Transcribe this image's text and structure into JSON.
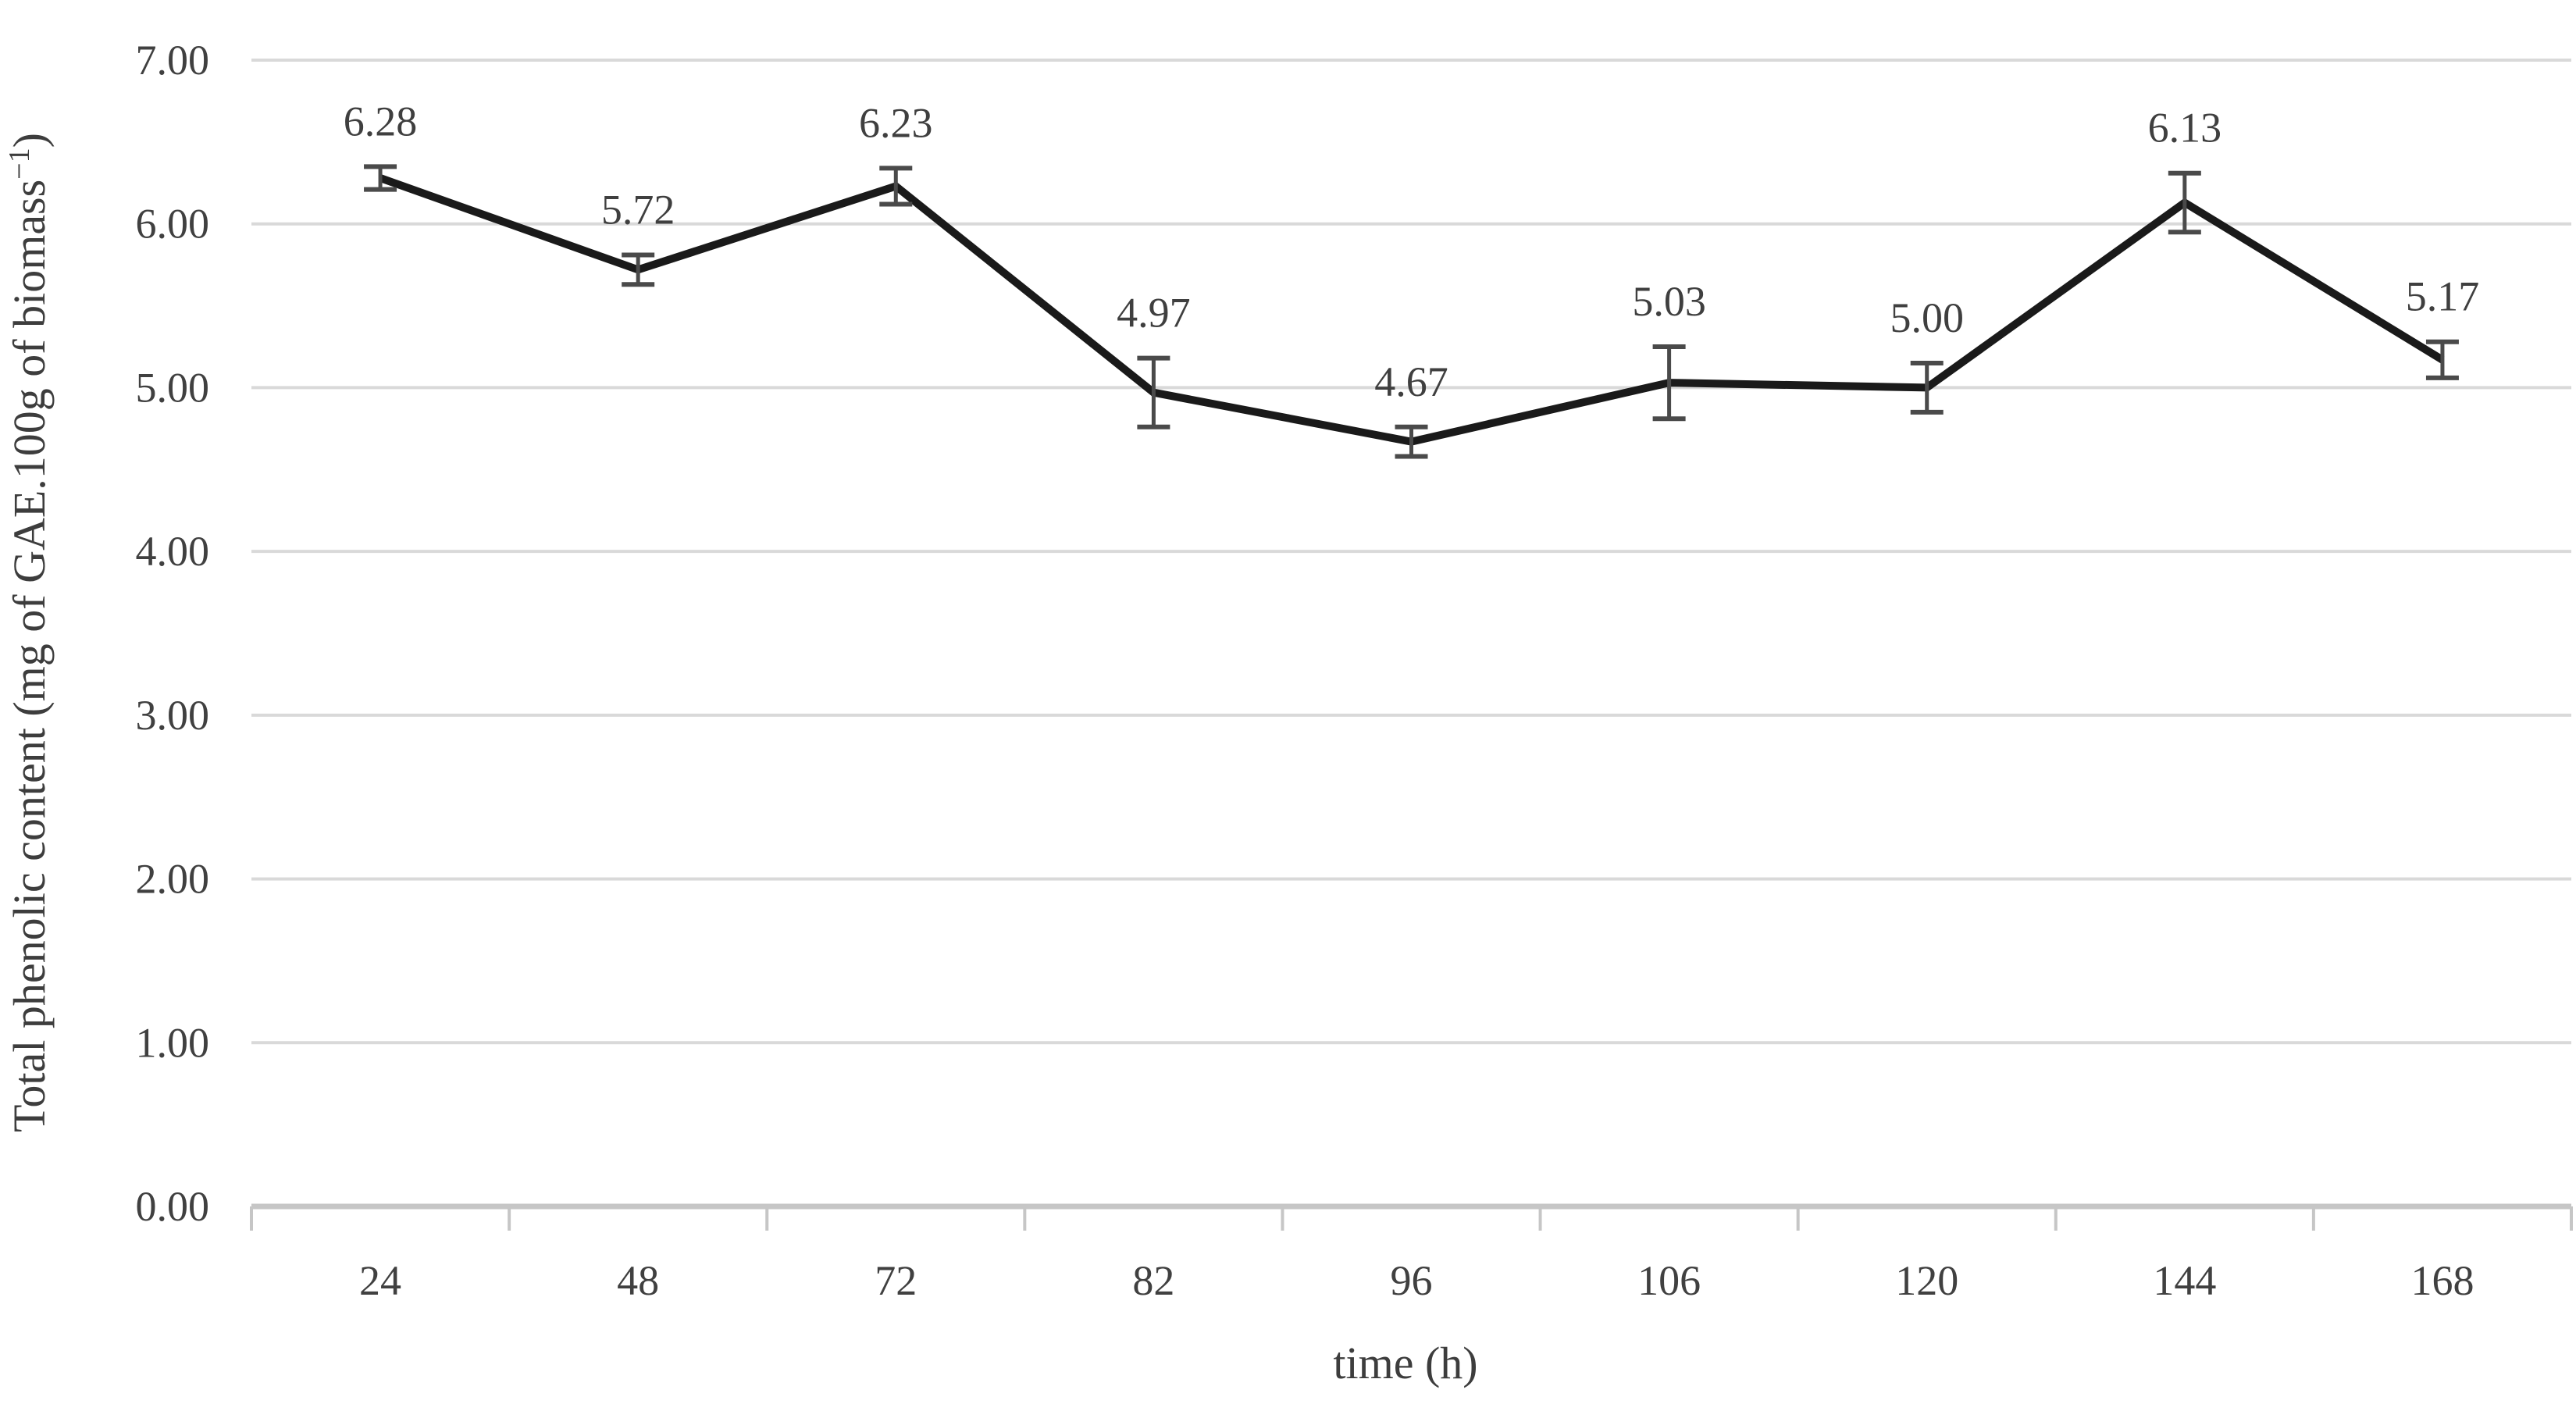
{
  "figure": {
    "background": "#ffffff"
  },
  "chart_data": {
    "type": "line",
    "title": "",
    "categories": [
      "24",
      "48",
      "72",
      "82",
      "96",
      "106",
      "120",
      "144",
      "168"
    ],
    "series": [
      {
        "name": "Total phenolic content",
        "values": [
          6.28,
          5.72,
          6.23,
          4.97,
          4.67,
          5.03,
          5.0,
          6.13,
          5.17
        ],
        "data_labels": [
          "6.28",
          "5.72",
          "6.23",
          "4.97",
          "4.67",
          "5.03",
          "5.00",
          "6.13",
          "5.17"
        ],
        "error_bars": [
          0.07,
          0.09,
          0.11,
          0.21,
          0.09,
          0.22,
          0.15,
          0.18,
          0.11
        ]
      }
    ],
    "xlabel": "time (h)",
    "ylabel": "Total phenolic content  (mg of GAE.100g of biomass⁻¹)",
    "ylabel_parts": {
      "base": "Total phenolic content  (mg of GAE.100g of biomass",
      "superscript": "−1",
      "close": ")"
    },
    "ylim": [
      0,
      7
    ],
    "y_ticks": [
      "0.00",
      "1.00",
      "2.00",
      "3.00",
      "4.00",
      "5.00",
      "6.00",
      "7.00"
    ],
    "grid": "horizontal",
    "legend": "none",
    "marker": "none",
    "colors": {
      "line": "#1a1a1a",
      "error_bar": "#4a4a4a",
      "gridline": "#d9d9d9",
      "axis_line": "#c6c6c6",
      "tick_label": "#404040",
      "data_label": "#3f3f3f",
      "axis_title": "#3d3d3d"
    }
  }
}
